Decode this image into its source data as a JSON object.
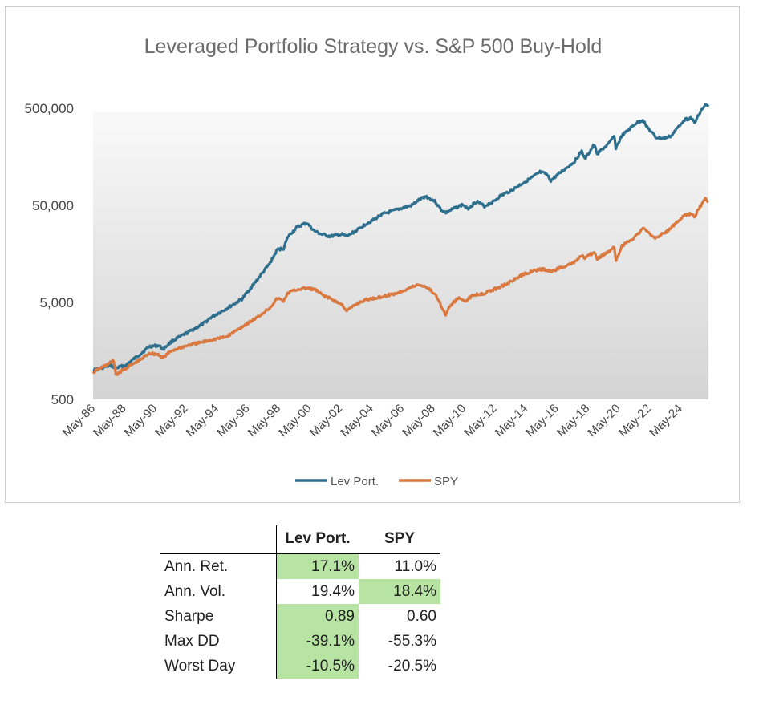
{
  "chart_data": {
    "type": "line",
    "title": "Leveraged Portfolio Strategy vs. S&P 500 Buy-Hold",
    "y_scale": "log",
    "ylim": [
      500,
      600000
    ],
    "y_ticks": [
      500,
      5000,
      50000,
      500000
    ],
    "y_tick_labels": [
      "500",
      "5,000",
      "50,000",
      "500,000"
    ],
    "x_range": [
      1986.37,
      2026.2
    ],
    "x_ticks": [
      1986.33,
      1988.33,
      1990.33,
      1992.33,
      1994.33,
      1996.33,
      1998.33,
      2000.33,
      2002.33,
      2004.33,
      2006.33,
      2008.33,
      2010.33,
      2012.33,
      2014.33,
      2016.33,
      2018.33,
      2020.33,
      2022.33,
      2024.33
    ],
    "x_tick_labels": [
      "May-86",
      "May-88",
      "May-90",
      "May-92",
      "May-94",
      "May-96",
      "May-98",
      "May-00",
      "May-02",
      "May-04",
      "May-06",
      "May-08",
      "May-10",
      "May-12",
      "May-14",
      "May-16",
      "May-18",
      "May-20",
      "May-22",
      "May-24"
    ],
    "legend_position": "bottom",
    "background": "gradient-area",
    "series": [
      {
        "name": "Lev Port.",
        "color": "#2e6f8e",
        "x": [
          1986.37,
          1987.5,
          1987.85,
          1988.5,
          1989.5,
          1990.0,
          1990.6,
          1990.9,
          1991.5,
          1992.5,
          1993.5,
          1994.0,
          1995.0,
          1996.0,
          1997.0,
          1997.8,
          1998.3,
          1998.7,
          1999.0,
          1999.6,
          2000.2,
          2000.7,
          2001.2,
          2001.7,
          2002.5,
          2002.8,
          2003.5,
          2004.0,
          2004.6,
          2005.0,
          2006.0,
          2007.0,
          2007.4,
          2007.9,
          2008.5,
          2008.9,
          2009.2,
          2009.8,
          2010.3,
          2010.6,
          2011.2,
          2011.7,
          2012.3,
          2012.7,
          2013.5,
          2014.2,
          2014.8,
          2015.3,
          2015.7,
          2016.0,
          2016.5,
          2017.5,
          2018.0,
          2018.2,
          2018.8,
          2019.0,
          2019.8,
          2020.1,
          2020.2,
          2020.6,
          2021.5,
          2021.95,
          2022.3,
          2022.8,
          2023.3,
          2023.8,
          2024.3,
          2024.6,
          2025.1,
          2025.3,
          2025.6,
          2026.0,
          2026.2
        ],
        "values": [
          1000,
          1120,
          1050,
          1130,
          1500,
          1750,
          1800,
          1650,
          2000,
          2450,
          3000,
          3500,
          4300,
          5400,
          8600,
          12500,
          17500,
          18000,
          24000,
          30000,
          33000,
          27000,
          25000,
          24000,
          25000,
          24000,
          28000,
          32000,
          36000,
          40000,
          45000,
          50000,
          56000,
          62000,
          55000,
          45000,
          42000,
          47000,
          51000,
          46000,
          55000,
          49000,
          55000,
          62000,
          72000,
          85000,
          97000,
          110000,
          105000,
          90000,
          105000,
          140000,
          180000,
          150000,
          210000,
          170000,
          220000,
          265000,
          195000,
          260000,
          350000,
          380000,
          310000,
          250000,
          245000,
          260000,
          330000,
          380000,
          400000,
          350000,
          440000,
          540000,
          520000
        ]
      },
      {
        "name": "SPY",
        "color": "#d9783f",
        "x": [
          1986.37,
          1987.7,
          1987.85,
          1988.5,
          1989.5,
          1990.0,
          1990.6,
          1990.9,
          1991.5,
          1992.5,
          1993.5,
          1994.0,
          1995.0,
          1996.0,
          1997.0,
          1997.8,
          1998.3,
          1998.7,
          1999.0,
          1999.6,
          2000.2,
          2000.7,
          2001.2,
          2001.7,
          2002.5,
          2002.8,
          2003.5,
          2004.0,
          2005.0,
          2006.0,
          2007.0,
          2007.4,
          2007.9,
          2008.3,
          2008.7,
          2009.0,
          2009.2,
          2009.5,
          2010.0,
          2010.5,
          2011.0,
          2011.7,
          2012.5,
          2013.5,
          2014.2,
          2014.8,
          2015.5,
          2016.0,
          2016.5,
          2017.5,
          2018.0,
          2018.2,
          2018.8,
          2019.0,
          2019.8,
          2020.1,
          2020.22,
          2020.6,
          2021.5,
          2021.95,
          2022.3,
          2022.8,
          2023.5,
          2024.3,
          2024.6,
          2025.1,
          2025.3,
          2025.6,
          2026.0,
          2026.2
        ],
        "values": [
          950,
          1250,
          900,
          1050,
          1300,
          1500,
          1450,
          1350,
          1600,
          1800,
          1950,
          2050,
          2200,
          2800,
          3500,
          4400,
          5500,
          5200,
          6300,
          6800,
          7000,
          6800,
          6000,
          5500,
          4700,
          4100,
          4900,
          5300,
          5700,
          6200,
          7200,
          7600,
          7300,
          6500,
          5500,
          4200,
          3700,
          4700,
          5500,
          5200,
          6000,
          6200,
          7000,
          8300,
          9700,
          10500,
          11000,
          10300,
          11200,
          12800,
          15200,
          14200,
          16500,
          14000,
          17000,
          18800,
          13500,
          19000,
          24000,
          29000,
          26000,
          23000,
          27000,
          35000,
          39000,
          41000,
          38000,
          47000,
          58000,
          54000
        ]
      }
    ]
  },
  "table": {
    "headers": [
      "",
      "Lev Port.",
      "SPY"
    ],
    "rows": [
      {
        "label": "Ann. Ret.",
        "lev": "17.1%",
        "spy": "11.0%",
        "lev_hl": true,
        "spy_hl": false
      },
      {
        "label": "Ann. Vol.",
        "lev": "19.4%",
        "spy": "18.4%",
        "lev_hl": false,
        "spy_hl": true
      },
      {
        "label": "Sharpe",
        "lev": "0.89",
        "spy": "0.60",
        "lev_hl": true,
        "spy_hl": false
      },
      {
        "label": "Max DD",
        "lev": "-39.1%",
        "spy": "-55.3%",
        "lev_hl": true,
        "spy_hl": false
      },
      {
        "label": "Worst Day",
        "lev": "-10.5%",
        "spy": "-20.5%",
        "lev_hl": true,
        "spy_hl": false
      }
    ],
    "highlight_color": "#b7e4a3"
  }
}
